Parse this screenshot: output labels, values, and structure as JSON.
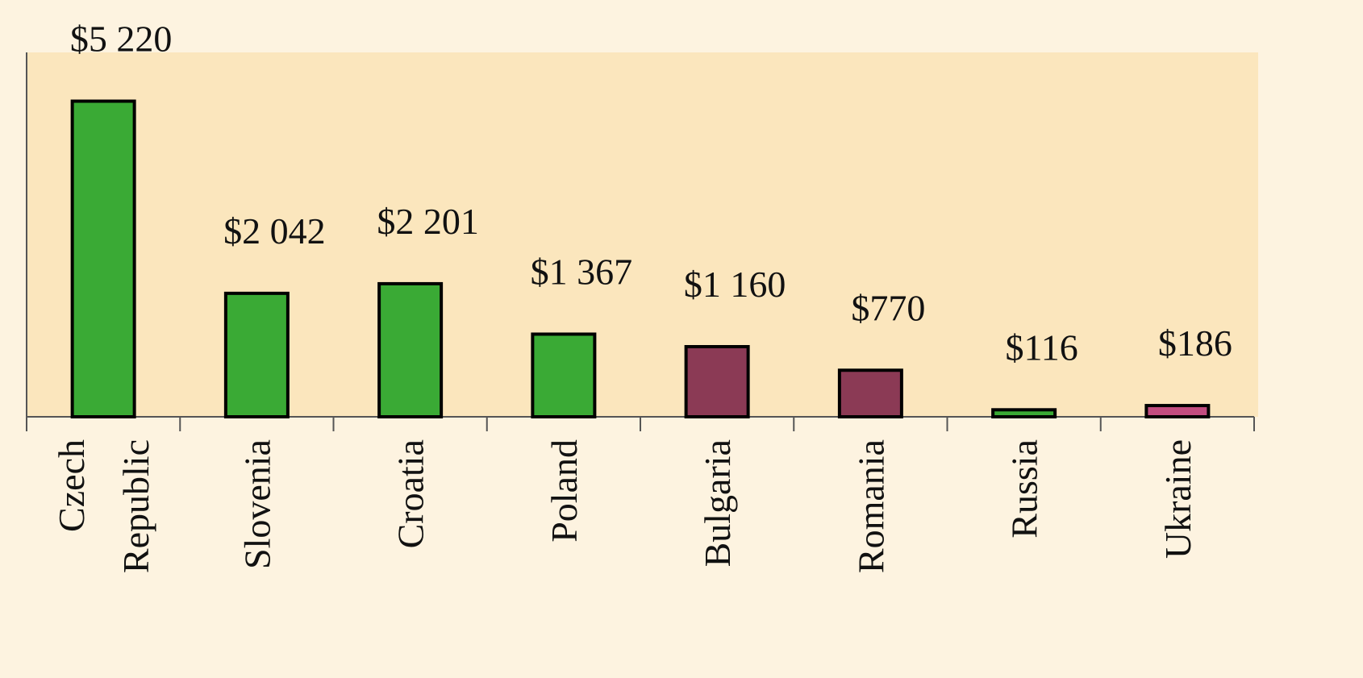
{
  "chart_data": {
    "type": "bar",
    "categories": [
      "Czech Republic",
      "Slovenia",
      "Croatia",
      "Poland",
      "Bulgaria",
      "Romania",
      "Russia",
      "Ukraine"
    ],
    "values": [
      5220,
      2042,
      2201,
      1367,
      1160,
      770,
      116,
      186
    ],
    "value_labels": [
      "$5 220",
      "$2 042",
      "$2 201",
      "$1 367",
      "$1 160",
      "$770",
      "$116",
      "$186"
    ],
    "colors": [
      "#3aaa35",
      "#3aaa35",
      "#3aaa35",
      "#3aaa35",
      "#8b3a55",
      "#8b3a55",
      "#3aaa35",
      "#c24d80"
    ],
    "ylim": [
      0,
      6000
    ]
  }
}
